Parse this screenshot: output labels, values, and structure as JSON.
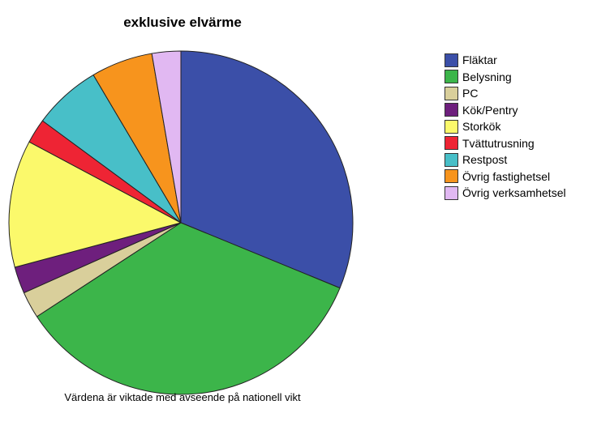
{
  "chart_data": {
    "type": "pie",
    "title": "exklusive elvärme",
    "footnote": "Värdena är viktade med avseende på nationell vikt",
    "legend_position": "right",
    "start_angle_deg": 0,
    "direction": "clockwise",
    "slices": [
      {
        "label": "Fläktar",
        "value": 32.3,
        "color": "#3b4fa8"
      },
      {
        "label": "Belysning",
        "value": 35.8,
        "color": "#3cb54a"
      },
      {
        "label": "PC",
        "value": 2.6,
        "color": "#d9cf9b"
      },
      {
        "label": "Kök/Pentry",
        "value": 2.6,
        "color": "#6e1f7d"
      },
      {
        "label": "Storkök",
        "value": 12.4,
        "color": "#fbf96b"
      },
      {
        "label": "Tvättutrusning",
        "value": 2.4,
        "color": "#ee2434"
      },
      {
        "label": "Restpost",
        "value": 6.6,
        "color": "#48bfc8"
      },
      {
        "label": "Övrig fastighetsel",
        "value": 6.0,
        "color": "#f7941d"
      },
      {
        "label": "Övrig verksamhetsel",
        "value": 2.8,
        "color": "#e1b8f2"
      }
    ]
  }
}
